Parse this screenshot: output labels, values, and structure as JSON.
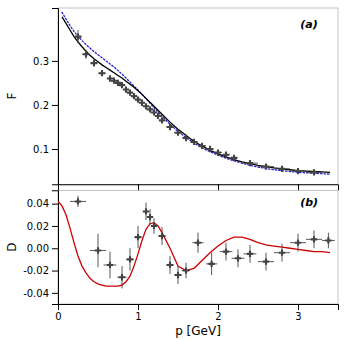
{
  "chart_data": [
    {
      "type": "line",
      "annotations": [
        "(a)"
      ],
      "ylabel": "F",
      "xlim": [
        0,
        3.5
      ],
      "ylim": [
        0.02,
        0.42
      ],
      "xticks": [
        0,
        1,
        2,
        3
      ],
      "yticks": [
        0.1,
        0.2,
        0.3
      ],
      "tick_labels": "y",
      "series": [
        {
          "type": "line",
          "color": "#2222cc",
          "line_style": "dotted",
          "x": [
            0.05,
            0.1,
            0.15,
            0.2,
            0.25,
            0.3,
            0.35,
            0.4,
            0.45,
            0.5,
            0.55,
            0.6,
            0.65,
            0.7,
            0.75,
            0.8,
            0.85,
            0.9,
            0.95,
            1.0,
            1.05,
            1.1,
            1.15,
            1.2,
            1.25,
            1.3,
            1.35,
            1.4,
            1.45,
            1.5,
            1.55,
            1.6,
            1.65,
            1.7,
            1.75,
            1.8,
            1.85,
            1.9,
            1.95,
            2.0,
            2.1,
            2.2,
            2.3,
            2.4,
            2.5,
            2.6,
            2.7,
            2.8,
            2.9,
            3.0,
            3.1,
            3.2,
            3.3,
            3.4
          ],
          "values": [
            0.41,
            0.395,
            0.38,
            0.367,
            0.356,
            0.346,
            0.337,
            0.329,
            0.321,
            0.314,
            0.307,
            0.3,
            0.293,
            0.286,
            0.278,
            0.27,
            0.261,
            0.252,
            0.243,
            0.234,
            0.224,
            0.214,
            0.204,
            0.194,
            0.184,
            0.174,
            0.165,
            0.156,
            0.148,
            0.14,
            0.133,
            0.126,
            0.12,
            0.114,
            0.108,
            0.103,
            0.098,
            0.094,
            0.09,
            0.086,
            0.079,
            0.073,
            0.068,
            0.063,
            0.059,
            0.056,
            0.053,
            0.051,
            0.049,
            0.047,
            0.046,
            0.045,
            0.044,
            0.043
          ]
        },
        {
          "type": "line",
          "color": "#000000",
          "line_style": "solid",
          "x": [
            0.05,
            0.1,
            0.15,
            0.2,
            0.25,
            0.3,
            0.35,
            0.4,
            0.45,
            0.5,
            0.55,
            0.6,
            0.65,
            0.7,
            0.75,
            0.8,
            0.85,
            0.9,
            0.95,
            1.0,
            1.05,
            1.1,
            1.15,
            1.2,
            1.25,
            1.3,
            1.35,
            1.4,
            1.45,
            1.5,
            1.55,
            1.6,
            1.65,
            1.7,
            1.75,
            1.8,
            1.85,
            1.9,
            1.95,
            2.0,
            2.1,
            2.2,
            2.3,
            2.4,
            2.5,
            2.6,
            2.7,
            2.8,
            2.9,
            3.0,
            3.1,
            3.2,
            3.3,
            3.4
          ],
          "values": [
            0.4,
            0.385,
            0.37,
            0.355,
            0.343,
            0.332,
            0.322,
            0.313,
            0.305,
            0.298,
            0.291,
            0.285,
            0.279,
            0.273,
            0.267,
            0.261,
            0.254,
            0.247,
            0.24,
            0.232,
            0.224,
            0.215,
            0.206,
            0.197,
            0.188,
            0.179,
            0.17,
            0.161,
            0.153,
            0.145,
            0.138,
            0.131,
            0.124,
            0.118,
            0.112,
            0.107,
            0.102,
            0.097,
            0.093,
            0.089,
            0.082,
            0.076,
            0.071,
            0.067,
            0.063,
            0.06,
            0.057,
            0.055,
            0.053,
            0.051,
            0.05,
            0.049,
            0.048,
            0.047
          ]
        },
        {
          "type": "scatter",
          "color": "#444444",
          "marker": "plus",
          "x": [
            0.25,
            0.35,
            0.45,
            0.55,
            0.65,
            0.7,
            0.75,
            0.8,
            0.85,
            0.9,
            0.95,
            1.0,
            1.05,
            1.1,
            1.15,
            1.2,
            1.25,
            1.3,
            1.4,
            1.5,
            1.6,
            1.7,
            1.8,
            1.9,
            2.0,
            2.1,
            2.2,
            2.4,
            2.6,
            2.8,
            3.0,
            3.2
          ],
          "values": [
            0.355,
            0.315,
            0.295,
            0.272,
            0.26,
            0.255,
            0.25,
            0.245,
            0.235,
            0.228,
            0.22,
            0.212,
            0.205,
            0.197,
            0.19,
            0.183,
            0.175,
            0.165,
            0.15,
            0.137,
            0.125,
            0.116,
            0.107,
            0.1,
            0.092,
            0.087,
            0.08,
            0.068,
            0.06,
            0.055,
            0.05,
            0.047
          ],
          "x_errors": [
            0.05,
            0.05,
            0.05,
            0.05,
            0.025,
            0.025,
            0.025,
            0.025,
            0.025,
            0.025,
            0.025,
            0.025,
            0.025,
            0.025,
            0.025,
            0.025,
            0.025,
            0.025,
            0.05,
            0.05,
            0.05,
            0.05,
            0.05,
            0.05,
            0.05,
            0.05,
            0.05,
            0.1,
            0.1,
            0.1,
            0.1,
            0.1
          ],
          "errors": [
            0.015,
            0.01,
            0.008,
            0.006,
            0.005,
            0.005,
            0.005,
            0.005,
            0.005,
            0.004,
            0.004,
            0.004,
            0.004,
            0.004,
            0.004,
            0.004,
            0.004,
            0.004,
            0.004,
            0.004,
            0.004,
            0.004,
            0.003,
            0.003,
            0.003,
            0.003,
            0.003,
            0.003,
            0.003,
            0.003,
            0.003,
            0.003
          ]
        }
      ]
    },
    {
      "type": "line",
      "annotations": [
        "(b)"
      ],
      "xlabel": "p [GeV]",
      "ylabel": "D",
      "xlim": [
        0,
        3.5
      ],
      "ylim": [
        -0.05,
        0.052
      ],
      "xticks": [
        0,
        1,
        2,
        3
      ],
      "yticks": [
        -0.04,
        -0.02,
        {
          "value": 0,
          "label": "0.00"
        },
        0.02,
        0.04
      ],
      "series": [
        {
          "type": "line",
          "color": "#cc0000",
          "line_style": "solid",
          "x": [
            0.0,
            0.05,
            0.1,
            0.15,
            0.2,
            0.25,
            0.3,
            0.35,
            0.4,
            0.45,
            0.5,
            0.55,
            0.6,
            0.65,
            0.7,
            0.75,
            0.8,
            0.85,
            0.9,
            0.95,
            1.0,
            1.05,
            1.1,
            1.15,
            1.2,
            1.25,
            1.3,
            1.4,
            1.5,
            1.6,
            1.7,
            1.8,
            1.9,
            2.0,
            2.1,
            2.2,
            2.3,
            2.4,
            2.5,
            2.6,
            2.7,
            2.8,
            2.9,
            3.0,
            3.1,
            3.2,
            3.3,
            3.4
          ],
          "values": [
            0.042,
            0.038,
            0.03,
            0.018,
            0.005,
            -0.007,
            -0.016,
            -0.022,
            -0.027,
            -0.03,
            -0.032,
            -0.033,
            -0.034,
            -0.034,
            -0.034,
            -0.034,
            -0.033,
            -0.03,
            -0.025,
            -0.016,
            -0.005,
            0.007,
            0.017,
            0.022,
            0.023,
            0.02,
            0.014,
            0.0,
            -0.016,
            -0.02,
            -0.018,
            -0.011,
            -0.004,
            0.002,
            0.007,
            0.01,
            0.01,
            0.008,
            0.005,
            0.003,
            0.002,
            0.001,
            0.0,
            -0.001,
            -0.002,
            -0.003,
            -0.003,
            -0.004
          ]
        },
        {
          "type": "scatter",
          "color": "#444444",
          "marker": "plus",
          "x": [
            0.25,
            0.5,
            0.65,
            0.8,
            0.9,
            1.0,
            1.1,
            1.15,
            1.2,
            1.3,
            1.4,
            1.5,
            1.6,
            1.75,
            1.92,
            2.1,
            2.25,
            2.4,
            2.6,
            2.8,
            3.0,
            3.2,
            3.38
          ],
          "values": [
            0.042,
            -0.002,
            -0.015,
            -0.026,
            -0.01,
            0.01,
            0.033,
            0.028,
            0.02,
            0.011,
            -0.015,
            -0.024,
            -0.02,
            0.005,
            -0.014,
            -0.003,
            -0.009,
            -0.005,
            -0.012,
            -0.004,
            0.005,
            0.008,
            0.007
          ],
          "x_errors": [
            0.1,
            0.1,
            0.08,
            0.06,
            0.05,
            0.05,
            0.04,
            0.03,
            0.03,
            0.05,
            0.05,
            0.05,
            0.05,
            0.07,
            0.07,
            0.08,
            0.08,
            0.08,
            0.1,
            0.1,
            0.1,
            0.1,
            0.08
          ],
          "errors": [
            0.005,
            0.015,
            0.012,
            0.01,
            0.01,
            0.01,
            0.008,
            0.007,
            0.007,
            0.008,
            0.008,
            0.008,
            0.007,
            0.009,
            0.01,
            0.008,
            0.008,
            0.008,
            0.008,
            0.008,
            0.008,
            0.008,
            0.007
          ]
        }
      ]
    }
  ]
}
